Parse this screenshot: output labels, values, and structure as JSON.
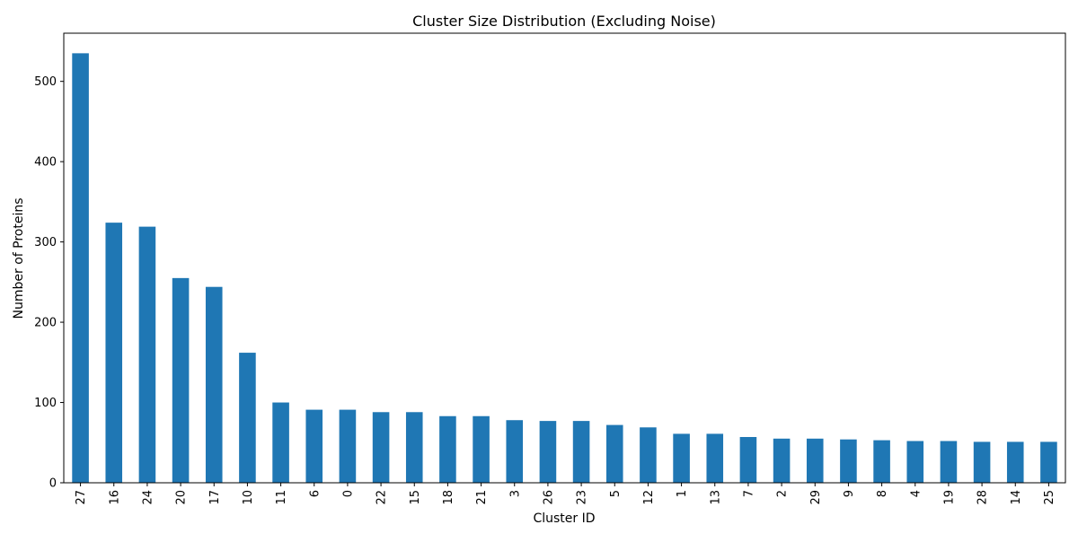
{
  "chart_data": {
    "type": "bar",
    "title": "Cluster Size Distribution (Excluding Noise)",
    "xlabel": "Cluster ID",
    "ylabel": "Number of Proteins",
    "categories": [
      "27",
      "16",
      "24",
      "20",
      "17",
      "10",
      "11",
      "6",
      "0",
      "22",
      "15",
      "18",
      "21",
      "3",
      "26",
      "23",
      "5",
      "12",
      "1",
      "13",
      "7",
      "2",
      "29",
      "9",
      "8",
      "4",
      "19",
      "28",
      "14",
      "25"
    ],
    "values": [
      535,
      324,
      319,
      255,
      244,
      162,
      100,
      91,
      91,
      88,
      88,
      83,
      83,
      78,
      77,
      77,
      72,
      69,
      61,
      61,
      57,
      55,
      55,
      54,
      53,
      52,
      52,
      51,
      51,
      51
    ],
    "ylim": [
      0,
      560
    ],
    "yticks": [
      0,
      100,
      200,
      300,
      400,
      500
    ],
    "bar_color": "#1f77b4",
    "grid": false,
    "legend": "none"
  }
}
